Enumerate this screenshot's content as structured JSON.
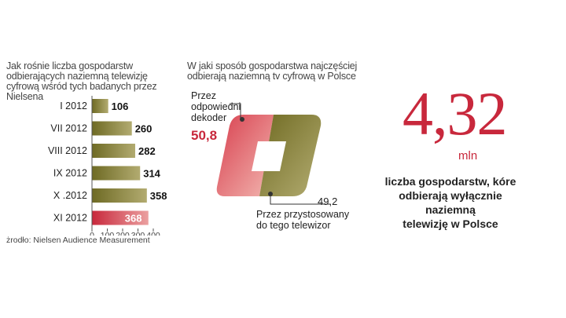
{
  "colors": {
    "accent": "#c8283c",
    "olive": "#7a7a2a",
    "olive_light": "#a8a060",
    "red_light": "#e58a8a"
  },
  "left": {
    "title_lines": [
      "Jak rośnie liczba gospodarstw",
      "odbierających naziemną telewizję",
      "cyfrową wśród tych badanych przez",
      "Nielsena"
    ],
    "source": "żrodło: Nielsen Audience Measurement"
  },
  "middle": {
    "title_lines": [
      "W jaki sposób gospodarstwa najczęściej",
      "odbierają naziemną tv cyfrową w Polsce"
    ],
    "decoder_label_lines": [
      "Przez",
      "odpowiedni",
      "dekoder"
    ],
    "decoder_value": "50,8",
    "tv_value": "49,2",
    "tv_label_lines": [
      "Przez przystosowany",
      "do tego telewizor"
    ]
  },
  "right": {
    "big_number": "4,32",
    "unit": "mln",
    "desc_lines": [
      "liczba gospodarstw, kóre",
      "odbierają wyłącznie",
      "naziemną",
      "telewizję w Polsce"
    ]
  },
  "chart_data": [
    {
      "type": "bar",
      "orientation": "horizontal",
      "categories": [
        "I 2012",
        "VII 2012",
        "VIII 2012",
        "IX 2012",
        "X .2012",
        "XI 2012"
      ],
      "values": [
        106,
        260,
        282,
        314,
        358,
        368
      ],
      "value_labels": [
        "106",
        "260",
        "282",
        "314",
        "358",
        "368"
      ],
      "xlim": [
        0,
        400
      ],
      "ticks": [
        "0",
        "100",
        "200",
        "300",
        "400"
      ],
      "highlight_index": 5
    },
    {
      "type": "pie",
      "categories": [
        "Przez odpowiedni dekoder",
        "Przez przystosowany do tego telewizor"
      ],
      "values": [
        50.8,
        49.2
      ]
    }
  ]
}
